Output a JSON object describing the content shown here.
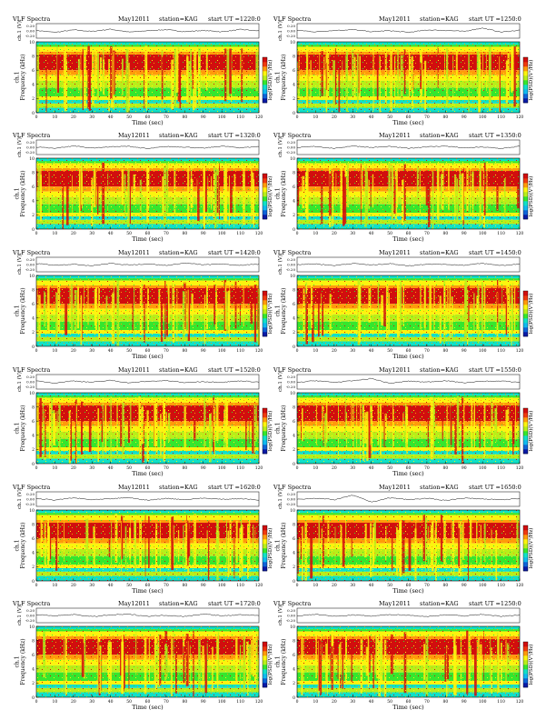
{
  "page": {
    "header": {
      "title": "VLF Spectra",
      "date": "May12011",
      "station": "station=KAG",
      "start_prefix": "start  UT  ="
    },
    "strip": {
      "ylabel": "ch.1 (V)",
      "ticks": [
        "0.20",
        "0.00",
        "-0.20"
      ],
      "range": [
        -0.3,
        0.3
      ]
    },
    "spectrogram": {
      "ylabel": "ch.1\nFrequency (kHz)",
      "yticks": [
        "0",
        "2",
        "4",
        "6",
        "8",
        "10"
      ],
      "ylim": [
        0,
        10
      ],
      "xticks": [
        "0",
        "10",
        "20",
        "30",
        "40",
        "50",
        "60",
        "70",
        "80",
        "90",
        "100",
        "110",
        "120"
      ],
      "xlim": [
        0,
        120
      ],
      "xlabel": "Time  (sec)"
    },
    "colorbar": {
      "label": "log(PSD)(V²/Hz)",
      "colors": [
        "#0a1aa6",
        "#0f63d8",
        "#10b9ef",
        "#10e0c8",
        "#35e62e",
        "#b8ee1a",
        "#fbf40e",
        "#ff9b0a",
        "#f03a0e",
        "#d10e0e"
      ]
    }
  },
  "chart_data": [
    {
      "type": "heatmap",
      "start_ut": "1220:0",
      "series": [
        {
          "values": [
            0.02,
            -0.06,
            0.04,
            -0.02,
            0.07,
            -0.05,
            0.01,
            0.05,
            -0.03,
            0.02,
            -0.04,
            0.06,
            0.0
          ]
        }
      ]
    },
    {
      "type": "heatmap",
      "start_ut": "1250:0",
      "series": [
        {
          "values": [
            0.03,
            -0.04,
            0.02,
            0.05,
            -0.03,
            0.01,
            -0.06,
            0.04,
            0.02,
            -0.02,
            0.12,
            -0.05,
            0.03
          ]
        }
      ]
    },
    {
      "type": "heatmap",
      "start_ut": "1320:0",
      "series": [
        {
          "values": [
            0.01,
            -0.05,
            0.06,
            -0.03,
            0.02,
            0.04,
            -0.06,
            0.03,
            0.01,
            -0.04,
            0.05,
            -0.02,
            0.03
          ]
        }
      ]
    },
    {
      "type": "heatmap",
      "start_ut": "1350:0",
      "series": [
        {
          "values": [
            -0.02,
            0.04,
            -0.05,
            0.06,
            -0.01,
            0.03,
            -0.04,
            0.02,
            0.05,
            -0.03,
            0.01,
            -0.05,
            0.04
          ]
        }
      ]
    },
    {
      "type": "heatmap",
      "start_ut": "1420:0",
      "series": [
        {
          "values": [
            0.04,
            -0.03,
            0.02,
            -0.05,
            0.05,
            -0.02,
            0.03,
            -0.04,
            0.06,
            -0.01,
            0.02,
            -0.03,
            0.01
          ]
        }
      ]
    },
    {
      "type": "heatmap",
      "start_ut": "1450:0",
      "series": [
        {
          "values": [
            0.0,
            0.03,
            -0.04,
            0.05,
            -0.02,
            0.04,
            -0.05,
            0.02,
            0.01,
            -0.03,
            0.05,
            -0.04,
            0.02
          ]
        }
      ]
    },
    {
      "type": "heatmap",
      "start_ut": "1520:0",
      "series": [
        {
          "values": [
            0.03,
            -0.05,
            0.04,
            -0.02,
            0.06,
            -0.04,
            0.02,
            0.05,
            -0.03,
            0.01,
            -0.02,
            0.04,
            -0.01
          ]
        }
      ]
    },
    {
      "type": "heatmap",
      "start_ut": "1550:0",
      "series": [
        {
          "values": [
            -0.03,
            0.05,
            -0.02,
            0.04,
            0.14,
            -0.06,
            0.03,
            -0.01,
            0.05,
            -0.04,
            0.02,
            0.03,
            -0.02
          ]
        }
      ]
    },
    {
      "type": "heatmap",
      "start_ut": "1620:0",
      "series": [
        {
          "values": [
            0.02,
            -0.04,
            0.05,
            -0.03,
            0.01,
            0.06,
            -0.05,
            0.03,
            -0.02,
            0.04,
            -0.01,
            0.02,
            -0.04
          ]
        }
      ]
    },
    {
      "type": "heatmap",
      "start_ut": "1650:0",
      "series": [
        {
          "values": [
            -0.01,
            0.04,
            -0.03,
            0.16,
            -0.12,
            0.05,
            -0.02,
            0.03,
            -0.05,
            0.04,
            0.01,
            -0.03,
            0.02
          ]
        }
      ]
    },
    {
      "type": "heatmap",
      "start_ut": "1720:0",
      "series": [
        {
          "values": [
            0.03,
            -0.02,
            0.04,
            -0.05,
            0.02,
            0.05,
            -0.03,
            0.01,
            -0.04,
            0.06,
            -0.02,
            0.03,
            -0.01
          ]
        }
      ]
    },
    {
      "type": "heatmap",
      "start_ut": "1250:0",
      "series": [
        {
          "values": [
            -0.02,
            0.05,
            -0.04,
            0.02,
            -0.03,
            0.04,
            0.01,
            -0.05,
            0.03,
            -0.02,
            0.05,
            -0.04,
            0.02
          ]
        }
      ]
    }
  ]
}
